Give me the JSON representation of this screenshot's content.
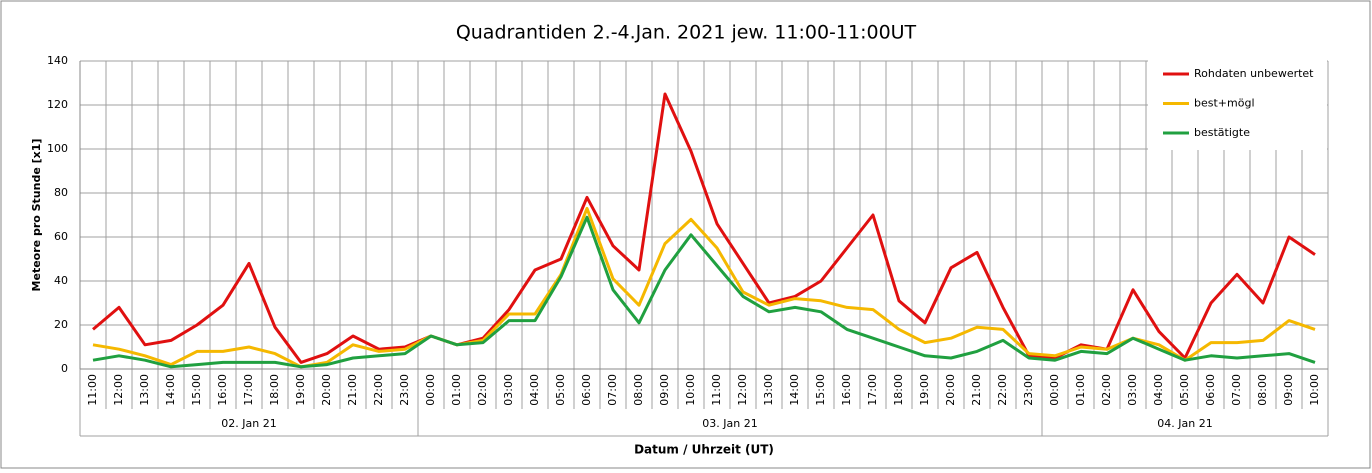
{
  "chart_data": {
    "type": "line",
    "title": "Quadrantiden 2.-4.Jan. 2021 jew. 11:00-11:00UT",
    "y_label": "Meteore pro Stunde [x1]",
    "x_label": "Datum / Uhrzeit (UT)",
    "groups": [
      {
        "label": "02. Jan 21",
        "categories": [
          "11:00",
          "12:00",
          "13:00",
          "14:00",
          "15:00",
          "16:00",
          "17:00",
          "18:00",
          "19:00",
          "20:00",
          "21:00",
          "22:00",
          "23:00"
        ]
      },
      {
        "label": "03. Jan 21",
        "categories": [
          "00:00",
          "01:00",
          "02:00",
          "03:00",
          "04:00",
          "05:00",
          "06:00",
          "07:00",
          "08:00",
          "09:00",
          "10:00",
          "11:00",
          "12:00",
          "13:00",
          "14:00",
          "15:00",
          "16:00",
          "17:00",
          "18:00",
          "19:00",
          "20:00",
          "21:00",
          "22:00",
          "23:00"
        ]
      },
      {
        "label": "04. Jan 21",
        "categories": [
          "00:00",
          "01:00",
          "02:00",
          "03:00",
          "04:00",
          "05:00",
          "06:00",
          "07:00",
          "08:00",
          "09:00",
          "10:00"
        ]
      }
    ],
    "series": [
      {
        "name": "Rohdaten unbewertet",
        "color": "#e01010",
        "values": [
          18,
          28,
          11,
          13,
          20,
          29,
          48,
          19,
          3,
          7,
          15,
          9,
          10,
          15,
          11,
          14,
          27,
          45,
          50,
          78,
          56,
          45,
          125,
          99,
          66,
          48,
          30,
          33,
          40,
          55,
          70,
          31,
          21,
          46,
          53,
          28,
          6,
          5,
          11,
          9,
          36,
          17,
          5,
          30,
          43,
          30,
          60,
          52
        ]
      },
      {
        "name": "best+mögl",
        "color": "#f5b800",
        "values": [
          11,
          9,
          6,
          2,
          8,
          8,
          10,
          7,
          1,
          3,
          11,
          8,
          9,
          15,
          11,
          13,
          25,
          25,
          43,
          73,
          41,
          29,
          57,
          68,
          55,
          35,
          29,
          32,
          31,
          28,
          27,
          18,
          12,
          14,
          19,
          18,
          7,
          6,
          10,
          9,
          14,
          11,
          4,
          12,
          12,
          13,
          22,
          18
        ]
      },
      {
        "name": "bestätigte",
        "color": "#20a040",
        "values": [
          4,
          6,
          4,
          1,
          2,
          3,
          3,
          3,
          1,
          2,
          5,
          6,
          7,
          15,
          11,
          12,
          22,
          22,
          42,
          69,
          36,
          21,
          45,
          61,
          47,
          33,
          26,
          28,
          26,
          18,
          14,
          10,
          6,
          5,
          8,
          13,
          5,
          4,
          8,
          7,
          14,
          9,
          4,
          6,
          5,
          6,
          7,
          3
        ]
      }
    ],
    "ylim": [
      0,
      140
    ],
    "yticks": [
      0,
      20,
      40,
      60,
      80,
      100,
      120,
      140
    ],
    "grid": true,
    "legend": "top-right"
  }
}
